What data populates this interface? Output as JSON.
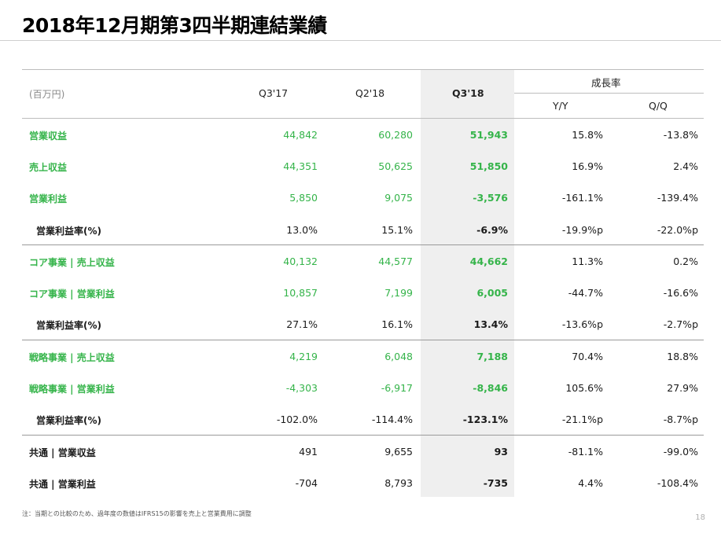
{
  "title": "2018年12月期第3四半期連結業績",
  "header": {
    "unit": "(百万円)",
    "columns": [
      "Q3'17",
      "Q2'18",
      "Q3'18"
    ],
    "growth_label": "成長率",
    "yy": "Y/Y",
    "qq": "Q/Q"
  },
  "rows": [
    {
      "label": "営業収益",
      "style": "green",
      "values": [
        "44,842",
        "60,280",
        "51,943",
        "15.8%",
        "-13.8%"
      ]
    },
    {
      "label": "売上収益",
      "style": "green",
      "values": [
        "44,351",
        "50,625",
        "51,850",
        "16.9%",
        "2.4%"
      ]
    },
    {
      "label": "営業利益",
      "style": "green",
      "values": [
        "5,850",
        "9,075",
        "-3,576",
        "-161.1%",
        "-139.4%"
      ]
    },
    {
      "label": "営業利益率(%)",
      "style": "sub",
      "values": [
        "13.0%",
        "15.1%",
        "-6.9%",
        "-19.9%p",
        "-22.0%p"
      ]
    },
    {
      "label": "コア事業 | 売上収益",
      "style": "green",
      "values": [
        "40,132",
        "44,577",
        "44,662",
        "11.3%",
        "0.2%"
      ]
    },
    {
      "label": "コア事業 | 営業利益",
      "style": "green",
      "values": [
        "10,857",
        "7,199",
        "6,005",
        "-44.7%",
        "-16.6%"
      ]
    },
    {
      "label": "営業利益率(%)",
      "style": "sub",
      "values": [
        "27.1%",
        "16.1%",
        "13.4%",
        "-13.6%p",
        "-2.7%p"
      ]
    },
    {
      "label": "戦略事業 | 売上収益",
      "style": "green",
      "values": [
        "4,219",
        "6,048",
        "7,188",
        "70.4%",
        "18.8%"
      ]
    },
    {
      "label": "戦略事業 | 営業利益",
      "style": "green",
      "values": [
        "-4,303",
        "-6,917",
        "-8,846",
        "105.6%",
        "27.9%"
      ]
    },
    {
      "label": "営業利益率(%)",
      "style": "sub",
      "values": [
        "-102.0%",
        "-114.4%",
        "-123.1%",
        "-21.1%p",
        "-8.7%p"
      ]
    },
    {
      "label": "共通 | 営業収益",
      "style": "dark",
      "values": [
        "491",
        "9,655",
        "93",
        "-81.1%",
        "-99.0%"
      ]
    },
    {
      "label": "共通 | 営業利益",
      "style": "dark",
      "values": [
        "-704",
        "8,793",
        "-735",
        "4.4%",
        "-108.4%"
      ]
    }
  ],
  "footnote": "注：当期との比較のため、過年度の数値はIFRS15の影響を売上と営業費用に調整",
  "page_number": "18"
}
